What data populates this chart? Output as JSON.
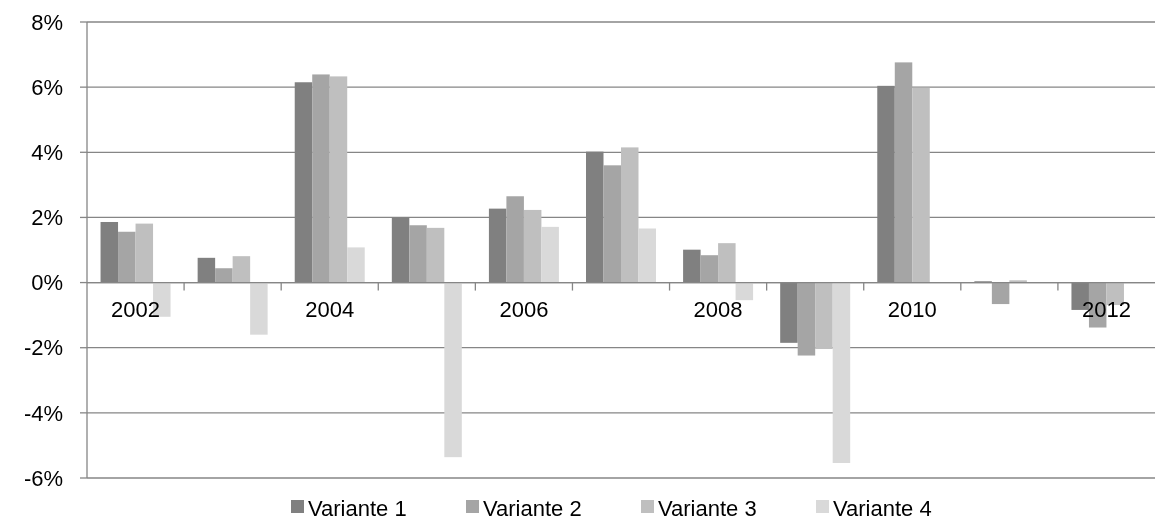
{
  "chart_data": {
    "type": "bar",
    "categories": [
      "2002",
      null,
      "2004",
      null,
      "2006",
      null,
      "2008",
      null,
      "2010",
      null,
      "2012"
    ],
    "series": [
      {
        "name": "Variante 1",
        "color": "#808080",
        "values": [
          1.86,
          0.76,
          6.15,
          2.0,
          2.27,
          4.02,
          1.01,
          -1.85,
          6.04,
          0.04,
          -0.84
        ]
      },
      {
        "name": "Variante 2",
        "color": "#a5a5a5",
        "values": [
          1.56,
          0.44,
          6.39,
          1.76,
          2.65,
          3.6,
          0.84,
          -2.24,
          6.76,
          -0.66,
          -1.38
        ]
      },
      {
        "name": "Variante 3",
        "color": "#bfbfbf",
        "values": [
          1.81,
          0.81,
          6.33,
          1.68,
          2.23,
          4.15,
          1.21,
          -2.04,
          5.98,
          0.07,
          -0.69
        ]
      },
      {
        "name": "Variante 4",
        "color": "#d9d9d9",
        "values": [
          -1.05,
          -1.6,
          1.08,
          -5.36,
          1.71,
          1.66,
          -0.54,
          -5.54,
          null,
          null,
          null
        ]
      }
    ],
    "ylim": [
      -6,
      8
    ],
    "yticks": [
      {
        "value": -6,
        "label": "-6%"
      },
      {
        "value": -4,
        "label": "-4%"
      },
      {
        "value": -2,
        "label": "-2%"
      },
      {
        "value": 0,
        "label": "0%"
      },
      {
        "value": 2,
        "label": "2%"
      },
      {
        "value": 4,
        "label": "4%"
      },
      {
        "value": 6,
        "label": "6%"
      },
      {
        "value": 8,
        "label": "8%"
      }
    ],
    "grid": "y",
    "legend": "bottom"
  }
}
